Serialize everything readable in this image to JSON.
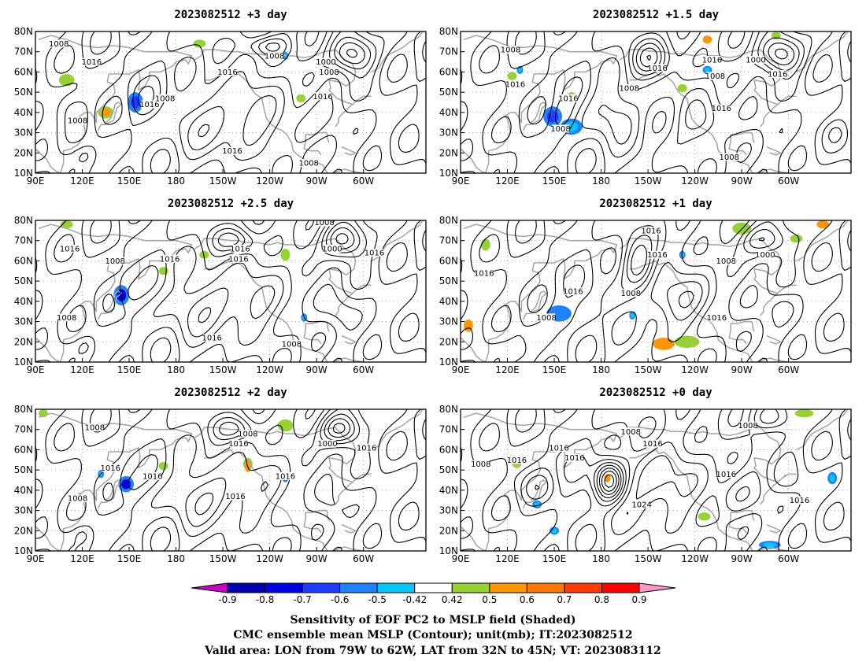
{
  "panels": [
    {
      "title": "2023082512 +3 day",
      "lows": [
        {
          "lon": 292,
          "lat": 69,
          "amp": 24,
          "w": 14,
          "h": 9
        },
        {
          "lon": 238,
          "lat": 73,
          "amp": 12,
          "w": 14,
          "h": 5
        },
        {
          "lon": 160,
          "lat": 45,
          "amp": 6,
          "w": 9,
          "h": 8
        },
        {
          "lon": 112,
          "lat": 42,
          "amp": 6,
          "w": 10,
          "h": 8
        }
      ],
      "highs": [
        {
          "lon": 215,
          "lat": 36,
          "amp": 12,
          "w": 32,
          "h": 14
        },
        {
          "lon": 122,
          "lat": 19,
          "amp": 4,
          "w": 6,
          "h": 4
        },
        {
          "lon": 262,
          "lat": 30,
          "amp": 6,
          "w": 14,
          "h": 9
        }
      ],
      "blue": [
        {
          "lon": 154,
          "lat": 45,
          "w": 5,
          "h": 5,
          "v": 0.75
        },
        {
          "lon": 250,
          "lat": 68,
          "w": 2,
          "h": 2,
          "v": 0.5
        }
      ],
      "warm": [
        {
          "lon": 135,
          "lat": 40,
          "w": 3,
          "h": 2,
          "v": 0.6
        }
      ],
      "green": [
        {
          "lon": 110,
          "lat": 56,
          "w": 5,
          "h": 3
        },
        {
          "lon": 135,
          "lat": 40,
          "w": 5,
          "h": 3
        },
        {
          "lon": 195,
          "lat": 74,
          "w": 4,
          "h": 2
        },
        {
          "lon": 260,
          "lat": 47,
          "w": 3,
          "h": 2
        }
      ],
      "labels": [
        {
          "text": "1008",
          "lon": 105,
          "lat": 74
        },
        {
          "text": "1016",
          "lon": 126,
          "lat": 65
        },
        {
          "text": "1016",
          "lon": 163,
          "lat": 44
        },
        {
          "text": "1016",
          "lon": 213,
          "lat": 60
        },
        {
          "text": "1008",
          "lon": 243,
          "lat": 68
        },
        {
          "text": "1000",
          "lon": 276,
          "lat": 65
        },
        {
          "text": "1008",
          "lon": 278,
          "lat": 60
        },
        {
          "text": "1016",
          "lon": 274,
          "lat": 48
        },
        {
          "text": "1008",
          "lon": 173,
          "lat": 47
        },
        {
          "text": "1008",
          "lon": 117,
          "lat": 36
        },
        {
          "text": "1016",
          "lon": 216,
          "lat": 21
        },
        {
          "text": "1008",
          "lon": 265,
          "lat": 15
        }
      ]
    },
    {
      "title": "2023082512 +1.5 day",
      "lows": [
        {
          "lon": 294,
          "lat": 69,
          "amp": 24,
          "w": 14,
          "h": 9
        },
        {
          "lon": 212,
          "lat": 66,
          "amp": 16,
          "w": 12,
          "h": 9
        },
        {
          "lon": 155,
          "lat": 38,
          "amp": 6,
          "w": 9,
          "h": 8
        }
      ],
      "highs": [
        {
          "lon": 188,
          "lat": 40,
          "amp": 10,
          "w": 18,
          "h": 12
        },
        {
          "lon": 245,
          "lat": 35,
          "amp": 10,
          "w": 14,
          "h": 10
        },
        {
          "lon": 330,
          "lat": 30,
          "amp": 4,
          "w": 8,
          "h": 6
        }
      ],
      "blue": [
        {
          "lon": 149,
          "lat": 38,
          "w": 6,
          "h": 5,
          "v": 0.7
        },
        {
          "lon": 161,
          "lat": 33,
          "w": 7,
          "h": 4,
          "v": 0.55
        },
        {
          "lon": 248,
          "lat": 61,
          "w": 3,
          "h": 2,
          "v": 0.55
        },
        {
          "lon": 128,
          "lat": 61,
          "w": 2,
          "h": 2,
          "v": 0.5
        }
      ],
      "warm": [
        {
          "lon": 248,
          "lat": 76,
          "w": 3,
          "h": 2,
          "v": 0.6
        }
      ],
      "green": [
        {
          "lon": 161,
          "lat": 48,
          "w": 3,
          "h": 2
        },
        {
          "lon": 232,
          "lat": 52,
          "w": 3,
          "h": 2
        },
        {
          "lon": 292,
          "lat": 78,
          "w": 3,
          "h": 2
        },
        {
          "lon": 123,
          "lat": 58,
          "w": 3,
          "h": 2
        }
      ],
      "labels": [
        {
          "text": "1008",
          "lon": 122,
          "lat": 71
        },
        {
          "text": "1016",
          "lon": 125,
          "lat": 54
        },
        {
          "text": "1016",
          "lon": 159,
          "lat": 47
        },
        {
          "text": "1008",
          "lon": 154,
          "lat": 32
        },
        {
          "text": "1016",
          "lon": 216,
          "lat": 62
        },
        {
          "text": "1008",
          "lon": 198,
          "lat": 52
        },
        {
          "text": "1016",
          "lon": 251,
          "lat": 66
        },
        {
          "text": "1008",
          "lon": 253,
          "lat": 58
        },
        {
          "text": "1000",
          "lon": 279,
          "lat": 66
        },
        {
          "text": "1016",
          "lon": 293,
          "lat": 59
        },
        {
          "text": "1016",
          "lon": 257,
          "lat": 42
        },
        {
          "text": "1008",
          "lon": 262,
          "lat": 18
        }
      ]
    },
    {
      "title": "2023082512 +2.5 day",
      "lows": [
        {
          "lon": 287,
          "lat": 70,
          "amp": 24,
          "w": 14,
          "h": 9
        },
        {
          "lon": 218,
          "lat": 70,
          "amp": 12,
          "w": 14,
          "h": 6
        },
        {
          "lon": 148,
          "lat": 44,
          "amp": 6,
          "w": 9,
          "h": 8
        }
      ],
      "highs": [
        {
          "lon": 210,
          "lat": 38,
          "amp": 12,
          "w": 32,
          "h": 13
        },
        {
          "lon": 122,
          "lat": 18,
          "amp": 4,
          "w": 5,
          "h": 4
        },
        {
          "lon": 285,
          "lat": 35,
          "amp": 4,
          "w": 10,
          "h": 8
        }
      ],
      "blue": [
        {
          "lon": 145,
          "lat": 43,
          "w": 5,
          "h": 5,
          "v": 0.78
        },
        {
          "lon": 262,
          "lat": 32,
          "w": 2,
          "h": 2,
          "v": 0.5
        }
      ],
      "warm": [],
      "green": [
        {
          "lon": 110,
          "lat": 78,
          "w": 4,
          "h": 2
        },
        {
          "lon": 172,
          "lat": 55,
          "w": 3,
          "h": 2
        },
        {
          "lon": 250,
          "lat": 63,
          "w": 3,
          "h": 3
        },
        {
          "lon": 198,
          "lat": 63,
          "w": 3,
          "h": 2
        }
      ],
      "labels": [
        {
          "text": "1016",
          "lon": 112,
          "lat": 66
        },
        {
          "text": "1008",
          "lon": 141,
          "lat": 60
        },
        {
          "text": "1016",
          "lon": 176,
          "lat": 61
        },
        {
          "text": "1016",
          "lon": 221,
          "lat": 66
        },
        {
          "text": "1016",
          "lon": 220,
          "lat": 61
        },
        {
          "text": "1008",
          "lon": 275,
          "lat": 79
        },
        {
          "text": "1000",
          "lon": 280,
          "lat": 66
        },
        {
          "text": "1016",
          "lon": 307,
          "lat": 64
        },
        {
          "text": "1008",
          "lon": 110,
          "lat": 32
        },
        {
          "text": "1016",
          "lon": 203,
          "lat": 22
        },
        {
          "text": "1008",
          "lon": 254,
          "lat": 19
        }
      ]
    },
    {
      "title": "2023082512 +1 day",
      "lows": [
        {
          "lon": 284,
          "lat": 70,
          "amp": 18,
          "w": 16,
          "h": 8
        },
        {
          "lon": 204,
          "lat": 58,
          "amp": 14,
          "w": 10,
          "h": 12
        },
        {
          "lon": 155,
          "lat": 34,
          "amp": 4,
          "w": 10,
          "h": 7
        }
      ],
      "highs": [
        {
          "lon": 225,
          "lat": 40,
          "amp": 12,
          "w": 20,
          "h": 12
        },
        {
          "lon": 128,
          "lat": 17,
          "amp": 4,
          "w": 5,
          "h": 5
        },
        {
          "lon": 296,
          "lat": 38,
          "amp": 4,
          "w": 9,
          "h": 7
        }
      ],
      "blue": [
        {
          "lon": 153,
          "lat": 34,
          "w": 8,
          "h": 4,
          "v": 0.6
        },
        {
          "lon": 200,
          "lat": 33,
          "w": 2,
          "h": 2,
          "v": 0.5
        },
        {
          "lon": 232,
          "lat": 63,
          "w": 2,
          "h": 2,
          "v": 0.5
        }
      ],
      "warm": [
        {
          "lon": 220,
          "lat": 19,
          "w": 7,
          "h": 3,
          "v": 0.62
        },
        {
          "lon": 95,
          "lat": 28,
          "w": 3,
          "h": 3,
          "v": 0.6
        },
        {
          "lon": 322,
          "lat": 78,
          "w": 4,
          "h": 2,
          "v": 0.62
        }
      ],
      "green": [
        {
          "lon": 235,
          "lat": 20,
          "w": 8,
          "h": 3
        },
        {
          "lon": 106,
          "lat": 68,
          "w": 3,
          "h": 3
        },
        {
          "lon": 270,
          "lat": 76,
          "w": 6,
          "h": 3
        },
        {
          "lon": 305,
          "lat": 71,
          "w": 4,
          "h": 2
        }
      ],
      "labels": [
        {
          "text": "1016",
          "lon": 212,
          "lat": 75
        },
        {
          "text": "1016",
          "lon": 216,
          "lat": 63
        },
        {
          "text": "1008",
          "lon": 199,
          "lat": 44
        },
        {
          "text": "1016",
          "lon": 162,
          "lat": 45
        },
        {
          "text": "1008",
          "lon": 145,
          "lat": 32
        },
        {
          "text": "1008",
          "lon": 260,
          "lat": 60
        },
        {
          "text": "1000",
          "lon": 285,
          "lat": 63
        },
        {
          "text": "1016",
          "lon": 105,
          "lat": 54
        },
        {
          "text": "1016",
          "lon": 254,
          "lat": 32
        }
      ]
    },
    {
      "title": "2023082512 +2 day",
      "lows": [
        {
          "lon": 285,
          "lat": 70,
          "amp": 24,
          "w": 13,
          "h": 8
        },
        {
          "lon": 218,
          "lat": 70,
          "amp": 12,
          "w": 13,
          "h": 6
        },
        {
          "lon": 148,
          "lat": 43,
          "amp": 6,
          "w": 9,
          "h": 8
        }
      ],
      "highs": [
        {
          "lon": 205,
          "lat": 38,
          "amp": 12,
          "w": 30,
          "h": 13
        },
        {
          "lon": 120,
          "lat": 18,
          "amp": 4,
          "w": 5,
          "h": 4
        },
        {
          "lon": 280,
          "lat": 30,
          "amp": 4,
          "w": 9,
          "h": 7
        }
      ],
      "blue": [
        {
          "lon": 148,
          "lat": 43,
          "w": 5,
          "h": 4,
          "v": 0.78
        },
        {
          "lon": 132,
          "lat": 48,
          "w": 2,
          "h": 2,
          "v": 0.5
        },
        {
          "lon": 250,
          "lat": 46,
          "w": 2,
          "h": 2,
          "v": 0.5
        }
      ],
      "warm": [
        {
          "lon": 226,
          "lat": 52,
          "w": 2,
          "h": 3,
          "v": 0.6
        }
      ],
      "green": [
        {
          "lon": 250,
          "lat": 72,
          "w": 5,
          "h": 3
        },
        {
          "lon": 226,
          "lat": 53,
          "w": 3,
          "h": 3
        },
        {
          "lon": 172,
          "lat": 52,
          "w": 3,
          "h": 2
        },
        {
          "lon": 95,
          "lat": 78,
          "w": 3,
          "h": 2
        }
      ],
      "labels": [
        {
          "text": "1008",
          "lon": 128,
          "lat": 71
        },
        {
          "text": "1016",
          "lon": 138,
          "lat": 51
        },
        {
          "text": "1016",
          "lon": 165,
          "lat": 47
        },
        {
          "text": "1008",
          "lon": 117,
          "lat": 36
        },
        {
          "text": "1008",
          "lon": 226,
          "lat": 68
        },
        {
          "text": "1016",
          "lon": 220,
          "lat": 63
        },
        {
          "text": "1000",
          "lon": 277,
          "lat": 63
        },
        {
          "text": "1016",
          "lon": 302,
          "lat": 61
        },
        {
          "text": "1016",
          "lon": 250,
          "lat": 47
        },
        {
          "text": "1016",
          "lon": 218,
          "lat": 37
        }
      ]
    },
    {
      "title": "2023082512 +0 day",
      "lows": [
        {
          "lon": 185,
          "lat": 45,
          "amp": 28,
          "w": 9,
          "h": 10
        },
        {
          "lon": 288,
          "lat": 75,
          "amp": 10,
          "w": 12,
          "h": 6
        },
        {
          "lon": 300,
          "lat": 45,
          "amp": 4,
          "w": 8,
          "h": 6
        }
      ],
      "highs": [
        {
          "lon": 215,
          "lat": 42,
          "amp": 12,
          "w": 22,
          "h": 15
        },
        {
          "lon": 138,
          "lat": 42,
          "amp": 6,
          "w": 12,
          "h": 8
        },
        {
          "lon": 265,
          "lat": 35,
          "amp": 6,
          "w": 15,
          "h": 10
        }
      ],
      "blue": [
        {
          "lon": 328,
          "lat": 46,
          "w": 3,
          "h": 3,
          "v": 0.55
        },
        {
          "lon": 288,
          "lat": 13,
          "w": 7,
          "h": 2,
          "v": 0.5
        },
        {
          "lon": 150,
          "lat": 20,
          "w": 3,
          "h": 2,
          "v": 0.5
        },
        {
          "lon": 139,
          "lat": 33,
          "w": 3,
          "h": 2,
          "v": 0.5
        }
      ],
      "warm": [
        {
          "lon": 184,
          "lat": 46,
          "w": 2,
          "h": 2,
          "v": 0.6
        }
      ],
      "green": [
        {
          "lon": 310,
          "lat": 78,
          "w": 6,
          "h": 2
        },
        {
          "lon": 126,
          "lat": 53,
          "w": 3,
          "h": 2
        },
        {
          "lon": 246,
          "lat": 27,
          "w": 4,
          "h": 2
        }
      ],
      "labels": [
        {
          "text": "1016",
          "lon": 153,
          "lat": 61
        },
        {
          "text": "1016",
          "lon": 163,
          "lat": 56
        },
        {
          "text": "1016",
          "lon": 126,
          "lat": 55
        },
        {
          "text": "1008",
          "lon": 103,
          "lat": 53
        },
        {
          "text": "1008",
          "lon": 199,
          "lat": 69
        },
        {
          "text": "1016",
          "lon": 213,
          "lat": 63
        },
        {
          "text": "1024",
          "lon": 206,
          "lat": 33
        },
        {
          "text": "1008",
          "lon": 274,
          "lat": 72
        },
        {
          "text": "1016",
          "lon": 260,
          "lat": 48
        },
        {
          "text": "1016",
          "lon": 307,
          "lat": 35
        }
      ]
    }
  ],
  "axes": {
    "lon_ticks": [
      {
        "v": 90,
        "label": "90E"
      },
      {
        "v": 120,
        "label": "120E"
      },
      {
        "v": 150,
        "label": "150E"
      },
      {
        "v": 180,
        "label": "180"
      },
      {
        "v": 210,
        "label": "150W"
      },
      {
        "v": 240,
        "label": "120W"
      },
      {
        "v": 270,
        "label": "90W"
      },
      {
        "v": 300,
        "label": "60W"
      }
    ],
    "lat_ticks": [
      {
        "v": 80,
        "label": "80N"
      },
      {
        "v": 70,
        "label": "70N"
      },
      {
        "v": 60,
        "label": "60N"
      },
      {
        "v": 50,
        "label": "50N"
      },
      {
        "v": 40,
        "label": "40N"
      },
      {
        "v": 30,
        "label": "30N"
      },
      {
        "v": 20,
        "label": "20N"
      },
      {
        "v": 10,
        "label": "10N"
      }
    ],
    "lon_range": [
      90,
      340
    ],
    "lat_range": [
      10,
      80
    ],
    "grid": "dotted"
  },
  "colorbar": {
    "labels": [
      "-0.9",
      "-0.8",
      "-0.7",
      "-0.6",
      "-0.5",
      "-0.42",
      "0.42",
      "0.5",
      "0.6",
      "0.7",
      "0.8",
      "0.9"
    ],
    "colors": [
      "#c800c8",
      "#0000b4",
      "#0000e6",
      "#1e3cff",
      "#1e82ff",
      "#00c8ff",
      "#ffffff",
      "#96d232",
      "#ff9600",
      "#ff7800",
      "#ff3c00",
      "#ff0000",
      "#ff96c8"
    ]
  },
  "caption": {
    "line1": "Sensitivity of EOF PC2 to MSLP field (Shaded)",
    "line2": "CMC ensemble mean MSLP (Contour); unit(mb); IT:2023082512",
    "line3": "Valid area: LON from 79W to 62W, LAT from 32N to 45N; VT: 2023083112"
  }
}
